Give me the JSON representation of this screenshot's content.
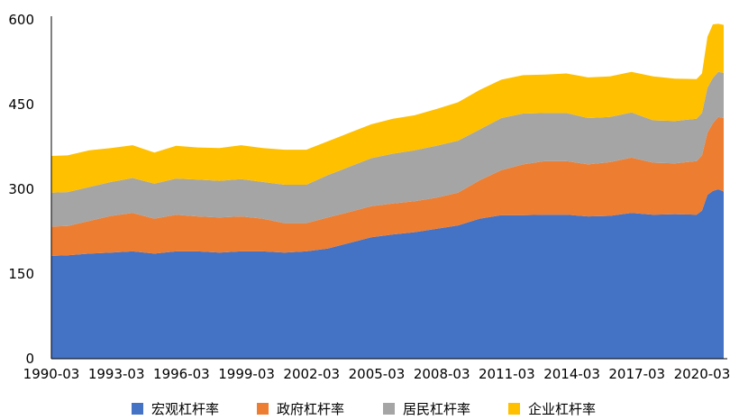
{
  "chart_data": {
    "type": "area",
    "stacked": true,
    "title": "",
    "xlabel": "",
    "ylabel": "",
    "ylim": [
      0,
      600
    ],
    "yticks": [
      0,
      150,
      300,
      450,
      600
    ],
    "grid": false,
    "legend_position": "bottom",
    "x_tick_labels": [
      "1990-03",
      "1993-03",
      "1996-03",
      "1999-03",
      "2002-03",
      "2005-03",
      "2008-03",
      "2011-03",
      "2014-03",
      "2017-03",
      "2020-03"
    ],
    "x": [
      "1990-03",
      "1990-12",
      "1991-12",
      "1992-12",
      "1993-12",
      "1994-12",
      "1995-12",
      "1996-12",
      "1997-12",
      "1998-12",
      "1999-12",
      "2000-12",
      "2001-12",
      "2002-12",
      "2003-12",
      "2004-12",
      "2005-12",
      "2006-12",
      "2007-12",
      "2008-12",
      "2009-12",
      "2010-12",
      "2011-12",
      "2012-12",
      "2013-12",
      "2014-12",
      "2015-12",
      "2016-12",
      "2017-12",
      "2018-12",
      "2019-12",
      "2020-03",
      "2020-06",
      "2020-09",
      "2020-12",
      "2021-03"
    ],
    "series": [
      {
        "name": "宏观杠杆率",
        "color": "#4472C4",
        "values": [
          182,
          183,
          186,
          188,
          190,
          186,
          190,
          190,
          188,
          190,
          190,
          188,
          190,
          195,
          205,
          215,
          220,
          224,
          230,
          236,
          248,
          254,
          254,
          255,
          255,
          252,
          253,
          258,
          255,
          256,
          255,
          262,
          290,
          297,
          300,
          296
        ]
      },
      {
        "name": "政府杠杆率",
        "color": "#ED7D31",
        "values": [
          52,
          52,
          58,
          65,
          68,
          62,
          65,
          62,
          62,
          62,
          58,
          52,
          50,
          55,
          55,
          55,
          55,
          55,
          55,
          58,
          68,
          80,
          90,
          95,
          95,
          92,
          95,
          98,
          92,
          90,
          95,
          98,
          110,
          120,
          128,
          130
        ]
      },
      {
        "name": "居民杠杆率",
        "color": "#A5A5A5",
        "values": [
          60,
          60,
          60,
          60,
          62,
          62,
          64,
          65,
          65,
          66,
          65,
          68,
          68,
          75,
          80,
          85,
          88,
          90,
          92,
          92,
          90,
          92,
          90,
          85,
          85,
          82,
          80,
          80,
          75,
          75,
          75,
          75,
          80,
          80,
          80,
          80
        ]
      },
      {
        "name": "企业杠杆率",
        "color": "#FFC000",
        "values": [
          65,
          65,
          65,
          60,
          58,
          55,
          58,
          57,
          58,
          60,
          60,
          62,
          62,
          60,
          60,
          60,
          62,
          62,
          65,
          68,
          70,
          68,
          68,
          68,
          70,
          72,
          72,
          72,
          78,
          75,
          70,
          70,
          90,
          95,
          85,
          85
        ]
      }
    ]
  }
}
